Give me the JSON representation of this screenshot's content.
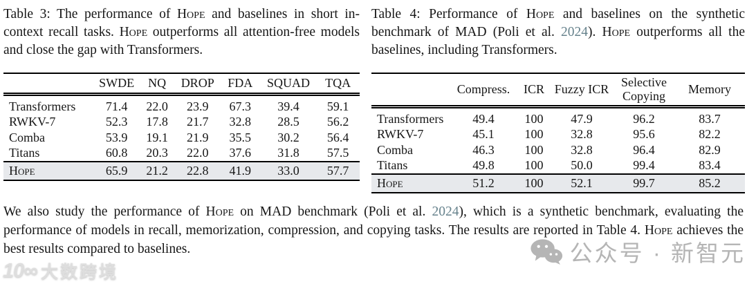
{
  "colors": {
    "link": "#66828c",
    "highlight_row": "#e7e9ec",
    "watermark": "#b5b5b5"
  },
  "caption3": {
    "segments": [
      {
        "text": "Table 3: The performance of "
      },
      {
        "text": "Hope",
        "style": "smallcaps"
      },
      {
        "text": " and baselines in short in-context recall tasks. "
      },
      {
        "text": "Hope",
        "style": "smallcaps"
      },
      {
        "text": " outperforms all attention-free models and close the gap with Transformers."
      }
    ]
  },
  "caption4": {
    "segments": [
      {
        "text": "Table 4: Performance of "
      },
      {
        "text": "Hope",
        "style": "smallcaps"
      },
      {
        "text": " and baselines on the synthetic benchmark of MAD (Poli et al. "
      },
      {
        "text": "2024",
        "style": "link"
      },
      {
        "text": "). "
      },
      {
        "text": "Hope",
        "style": "smallcaps"
      },
      {
        "text": " outperforms all the baselines, including Transformers."
      }
    ]
  },
  "table3": {
    "headers": [
      "SWDE",
      "NQ",
      "DROP",
      "FDA",
      "SQUAD",
      "TQA"
    ],
    "rows": [
      {
        "model": "Transformers",
        "values": [
          "71.4",
          "22.0",
          "23.9",
          "67.3",
          "39.4",
          "59.1"
        ]
      },
      {
        "model": "RWKV-7",
        "values": [
          "52.3",
          "17.8",
          "21.7",
          "32.8",
          "28.5",
          "56.2"
        ]
      },
      {
        "model": "Comba",
        "values": [
          "53.9",
          "19.1",
          "21.9",
          "35.5",
          "30.2",
          "56.4"
        ]
      },
      {
        "model": "Titans",
        "values": [
          "60.8",
          "20.3",
          "22.0",
          "37.6",
          "31.8",
          "57.5"
        ]
      }
    ],
    "highlight_row": {
      "model": "Hope",
      "values": [
        "65.9",
        "21.2",
        "22.8",
        "41.9",
        "33.0",
        "57.7"
      ]
    }
  },
  "table4": {
    "headers": [
      "Compress.",
      "ICR",
      "Fuzzy ICR",
      "Selective Copying",
      "Memory"
    ],
    "rows": [
      {
        "model": "Transformers",
        "values": [
          "49.4",
          "100",
          "47.9",
          "96.2",
          "83.7"
        ]
      },
      {
        "model": "RWKV-7",
        "values": [
          "45.1",
          "100",
          "32.8",
          "95.6",
          "82.2"
        ]
      },
      {
        "model": "Comba",
        "values": [
          "46.3",
          "100",
          "32.8",
          "96.4",
          "82.9"
        ]
      },
      {
        "model": "Titans",
        "values": [
          "49.8",
          "100",
          "50.0",
          "99.4",
          "83.4"
        ]
      }
    ],
    "highlight_row": {
      "model": "Hope",
      "values": [
        "51.2",
        "100",
        "52.1",
        "99.7",
        "85.2"
      ]
    }
  },
  "paragraph": {
    "segments": [
      {
        "text": "We also study the performance of "
      },
      {
        "text": "Hope",
        "style": "smallcaps"
      },
      {
        "text": " on MAD benchmark (Poli et al. "
      },
      {
        "text": "2024",
        "style": "link"
      },
      {
        "text": "), which is a synthetic benchmark, evaluating the performance of models in recall, memorization, compression, and copying tasks. The results are reported in Table 4. "
      },
      {
        "text": "Hope",
        "style": "smallcaps"
      },
      {
        "text": " achieves the best results compared to baselines."
      }
    ]
  },
  "watermarks": {
    "left": {
      "logo": "10∞",
      "text": "大数跨境"
    },
    "right": {
      "text": "公众号 · 新智元"
    }
  }
}
